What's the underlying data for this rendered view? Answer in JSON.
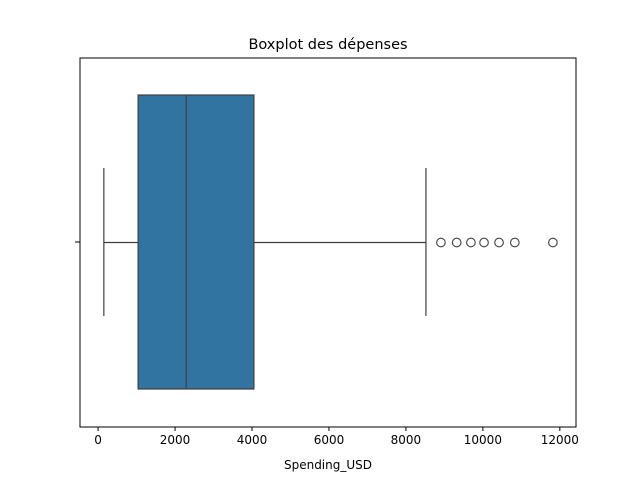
{
  "chart_data": {
    "type": "boxplot",
    "title": "Boxplot des dépenses",
    "xlabel": "Spending_USD",
    "color": "#3274a1",
    "box": {
      "whislo": 150,
      "q1": 1040,
      "med": 2290,
      "q3": 4050,
      "whishi": 8520
    },
    "fliers": [
      8910,
      9320,
      9690,
      10030,
      10420,
      10830,
      11820
    ],
    "xlim": [
      -470,
      12420
    ],
    "xticks": [
      0,
      2000,
      4000,
      6000,
      8000,
      10000,
      12000
    ]
  }
}
